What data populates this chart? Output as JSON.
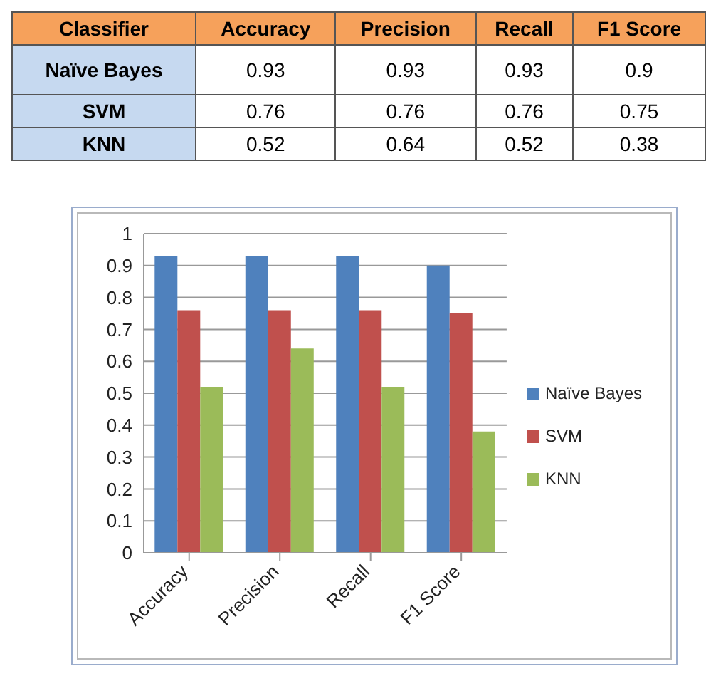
{
  "chart_data": [
    {
      "type": "heatmap",
      "ylabel": "Classifier",
      "data_labels": true,
      "categories": [
        "Accuracy",
        "Precision",
        "Recall",
        "F1 Score"
      ],
      "y_categories": [
        "Naïve Bayes",
        "SVM",
        "KNN"
      ],
      "cells": [
        [
          0.93,
          0.93,
          0.93,
          0.9
        ],
        [
          0.76,
          0.76,
          0.76,
          0.75
        ],
        [
          0.52,
          0.64,
          0.52,
          0.38
        ]
      ]
    },
    {
      "type": "bar",
      "categories": [
        "Accuracy",
        "Precision",
        "Recall",
        "F1 Score"
      ],
      "series": [
        {
          "name": "Naïve Bayes",
          "color": "#4f81bd",
          "values": [
            0.93,
            0.93,
            0.93,
            0.9
          ]
        },
        {
          "name": "SVM",
          "color": "#c0504d",
          "values": [
            0.76,
            0.76,
            0.76,
            0.75
          ]
        },
        {
          "name": "KNN",
          "color": "#9bbb59",
          "values": [
            0.52,
            0.64,
            0.52,
            0.38
          ]
        }
      ],
      "ylim": [
        0,
        1
      ],
      "yticks": [
        0,
        0.1,
        0.2,
        0.3,
        0.4,
        0.5,
        0.6,
        0.7,
        0.8,
        0.9,
        1
      ],
      "grid": "y",
      "legend": "right"
    }
  ]
}
